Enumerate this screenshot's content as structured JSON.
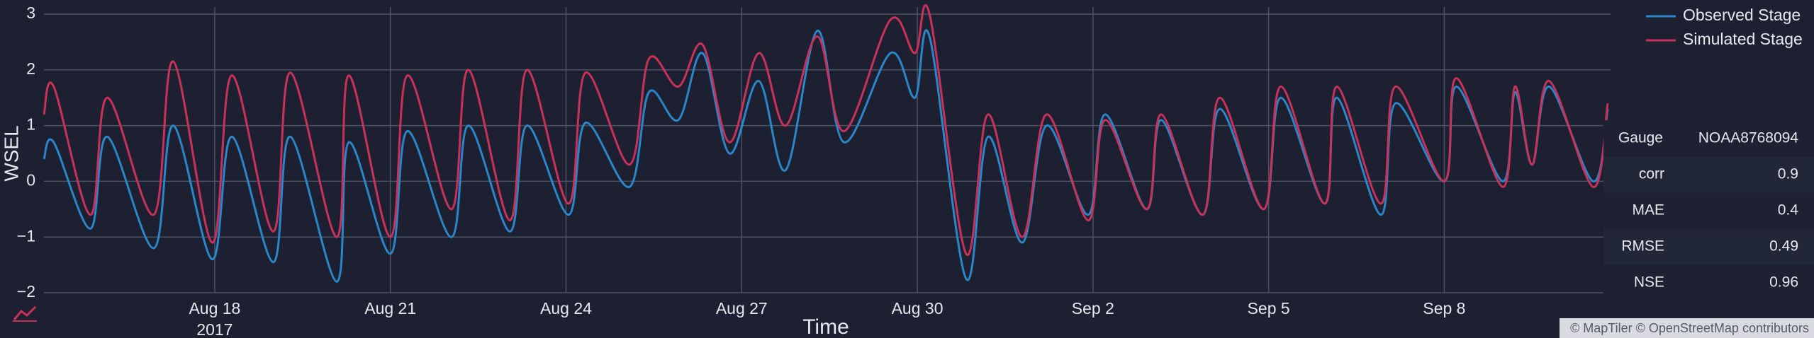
{
  "chart_data": {
    "type": "line",
    "y_label": "WSEL",
    "x_label": "Time",
    "x": [
      "2017-08-15T02:00",
      "2017-08-15T06:00",
      "2017-08-15T21:00",
      "2017-08-16T04:00",
      "2017-08-16T23:00",
      "2017-08-17T07:00",
      "2017-08-17T23:00",
      "2017-08-18T07:00",
      "2017-08-19T00:00",
      "2017-08-19T07:00",
      "2017-08-20T02:00",
      "2017-08-20T07:00",
      "2017-08-21T00:00",
      "2017-08-21T07:00",
      "2017-08-22T01:00",
      "2017-08-22T08:00",
      "2017-08-23T01:00",
      "2017-08-23T08:00",
      "2017-08-24T01:00",
      "2017-08-24T08:00",
      "2017-08-25T02:00",
      "2017-08-25T10:00",
      "2017-08-25T22:00",
      "2017-08-26T08:00",
      "2017-08-26T19:00",
      "2017-08-27T07:00",
      "2017-08-27T18:00",
      "2017-08-28T07:00",
      "2017-08-28T18:00",
      "2017-08-29T13:00",
      "2017-08-29T23:00",
      "2017-08-30T05:00",
      "2017-08-30T20:00",
      "2017-08-31T05:00",
      "2017-08-31T19:00",
      "2017-09-01T05:00",
      "2017-09-01T22:00",
      "2017-09-02T05:00",
      "2017-09-02T22:00",
      "2017-09-03T04:00",
      "2017-09-03T21:00",
      "2017-09-04T04:00",
      "2017-09-04T22:00",
      "2017-09-05T05:00",
      "2017-09-05T23:00",
      "2017-09-06T04:00",
      "2017-09-06T22:00",
      "2017-09-07T04:00",
      "2017-09-08T00:00",
      "2017-09-08T05:00",
      "2017-09-09T00:00",
      "2017-09-09T05:00",
      "2017-09-09T12:00",
      "2017-09-09T19:00",
      "2017-09-10T13:00",
      "2017-09-10T19:00"
    ],
    "series": [
      {
        "name": "Observed Stage",
        "color": "#2b86c9",
        "values": [
          0.4,
          0.7,
          -0.85,
          0.8,
          -1.2,
          1.0,
          -1.4,
          0.8,
          -1.45,
          0.8,
          -1.8,
          0.7,
          -1.3,
          0.9,
          -1.0,
          1.0,
          -0.9,
          1.0,
          -0.6,
          1.05,
          -0.1,
          1.6,
          1.1,
          2.3,
          0.5,
          1.8,
          0.2,
          2.7,
          0.7,
          2.3,
          1.5,
          2.6,
          -1.75,
          0.8,
          -1.1,
          1.0,
          -0.6,
          1.2,
          -0.5,
          1.1,
          -0.6,
          1.3,
          -0.5,
          1.5,
          -0.4,
          1.5,
          -0.6,
          1.4,
          0.0,
          1.7,
          0.0,
          1.6,
          0.3,
          1.7,
          0.0,
          1.3
        ]
      },
      {
        "name": "Simulated Stage",
        "color": "#c8325a",
        "values": [
          1.2,
          1.7,
          -0.6,
          1.5,
          -0.6,
          2.15,
          -1.1,
          1.9,
          -0.9,
          1.95,
          -1.0,
          1.9,
          -1.0,
          1.9,
          -0.5,
          2.0,
          -0.7,
          2.0,
          -0.4,
          1.95,
          0.3,
          2.2,
          1.7,
          2.45,
          0.7,
          2.3,
          1.0,
          2.6,
          0.9,
          2.9,
          2.3,
          3.0,
          -1.3,
          1.2,
          -1.0,
          1.2,
          -0.7,
          1.1,
          -0.5,
          1.2,
          -0.6,
          1.5,
          -0.5,
          1.7,
          -0.4,
          1.7,
          -0.4,
          1.7,
          0.0,
          1.85,
          -0.1,
          1.7,
          0.3,
          1.8,
          -0.1,
          1.4
        ]
      }
    ],
    "xlim": [
      "2017-08-15T02:00",
      "2017-09-10T19:00"
    ],
    "xticks": [
      {
        "value": "2017-08-18T00:00",
        "label": "Aug 18",
        "sublabel": "2017"
      },
      {
        "value": "2017-08-21T00:00",
        "label": "Aug 21"
      },
      {
        "value": "2017-08-24T00:00",
        "label": "Aug 24"
      },
      {
        "value": "2017-08-27T00:00",
        "label": "Aug 27"
      },
      {
        "value": "2017-08-30T00:00",
        "label": "Aug 30"
      },
      {
        "value": "2017-09-02T00:00",
        "label": "Sep 2"
      },
      {
        "value": "2017-09-05T00:00",
        "label": "Sep 5"
      },
      {
        "value": "2017-09-08T00:00",
        "label": "Sep 8"
      }
    ],
    "ylim": [
      -2,
      3
    ],
    "yticks": [
      {
        "value": -2,
        "label": "−2"
      },
      {
        "value": -1,
        "label": "−1"
      },
      0,
      1,
      2,
      3
    ],
    "grid": true,
    "legend": "top-right"
  },
  "stats_table": {
    "rows": [
      [
        "Gauge",
        "NOAA8768094"
      ],
      [
        "corr",
        "0.9"
      ],
      [
        "MAE",
        "0.4"
      ],
      [
        "RMSE",
        "0.49"
      ],
      [
        "NSE",
        "0.96"
      ]
    ]
  },
  "attribution": "© MapTiler © OpenStreetMap contributors"
}
